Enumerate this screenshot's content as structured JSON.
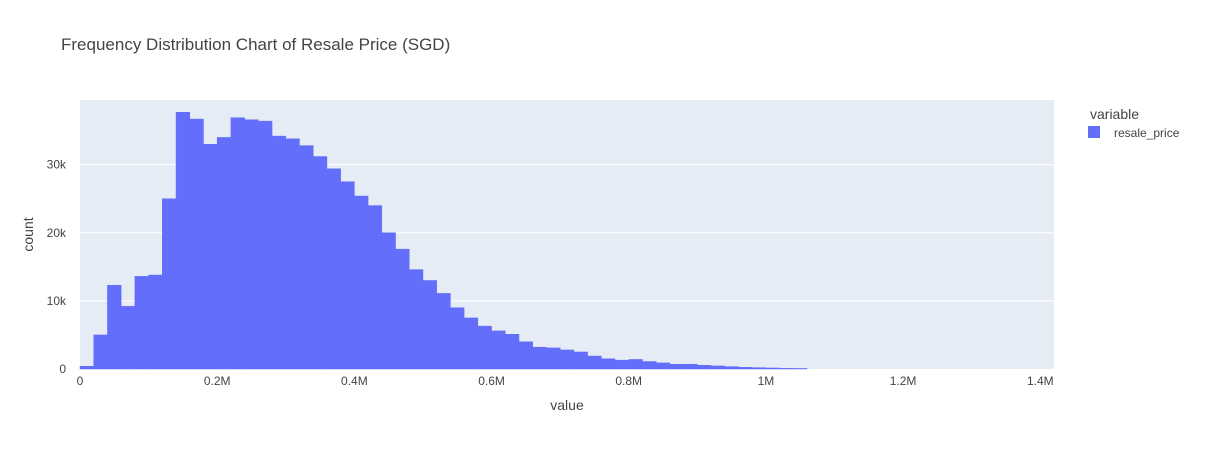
{
  "chart_data": {
    "type": "bar",
    "title": "Frequency Distribution Chart of Resale Price (SGD)",
    "xlabel": "value",
    "ylabel": "count",
    "xlim": [
      0,
      1420000
    ],
    "ylim": [
      0,
      39500
    ],
    "bin_width": 20000,
    "x_ticks": [
      {
        "value": 0,
        "label": "0"
      },
      {
        "value": 200000,
        "label": "0.2M"
      },
      {
        "value": 400000,
        "label": "0.4M"
      },
      {
        "value": 600000,
        "label": "0.6M"
      },
      {
        "value": 800000,
        "label": "0.8M"
      },
      {
        "value": 1000000,
        "label": "1M"
      },
      {
        "value": 1200000,
        "label": "1.2M"
      },
      {
        "value": 1400000,
        "label": "1.4M"
      }
    ],
    "y_ticks": [
      {
        "value": 0,
        "label": "0"
      },
      {
        "value": 10000,
        "label": "10k"
      },
      {
        "value": 20000,
        "label": "20k"
      },
      {
        "value": 30000,
        "label": "30k"
      }
    ],
    "grid": true,
    "legend": {
      "title": "variable",
      "placement": "top-right"
    },
    "series": [
      {
        "name": "resale_price",
        "color": "#636efa",
        "x": [
          0,
          20000,
          40000,
          60000,
          80000,
          100000,
          120000,
          140000,
          160000,
          180000,
          200000,
          220000,
          240000,
          260000,
          280000,
          300000,
          320000,
          340000,
          360000,
          380000,
          400000,
          420000,
          440000,
          460000,
          480000,
          500000,
          520000,
          540000,
          560000,
          580000,
          600000,
          620000,
          640000,
          660000,
          680000,
          700000,
          720000,
          740000,
          760000,
          780000,
          800000,
          820000,
          840000,
          860000,
          880000,
          900000,
          920000,
          940000,
          960000,
          980000,
          1000000,
          1020000,
          1040000
        ],
        "values": [
          400,
          5000,
          12300,
          9200,
          13600,
          13800,
          25000,
          37700,
          36700,
          33000,
          34000,
          36900,
          36600,
          36400,
          34200,
          33800,
          32800,
          31200,
          29400,
          27500,
          25400,
          24000,
          20000,
          17600,
          14600,
          13000,
          11100,
          9000,
          7500,
          6300,
          5600,
          5100,
          4000,
          3200,
          3100,
          2800,
          2500,
          1900,
          1500,
          1300,
          1400,
          1100,
          900,
          700,
          700,
          550,
          450,
          350,
          250,
          200,
          150,
          100,
          80
        ]
      }
    ]
  }
}
